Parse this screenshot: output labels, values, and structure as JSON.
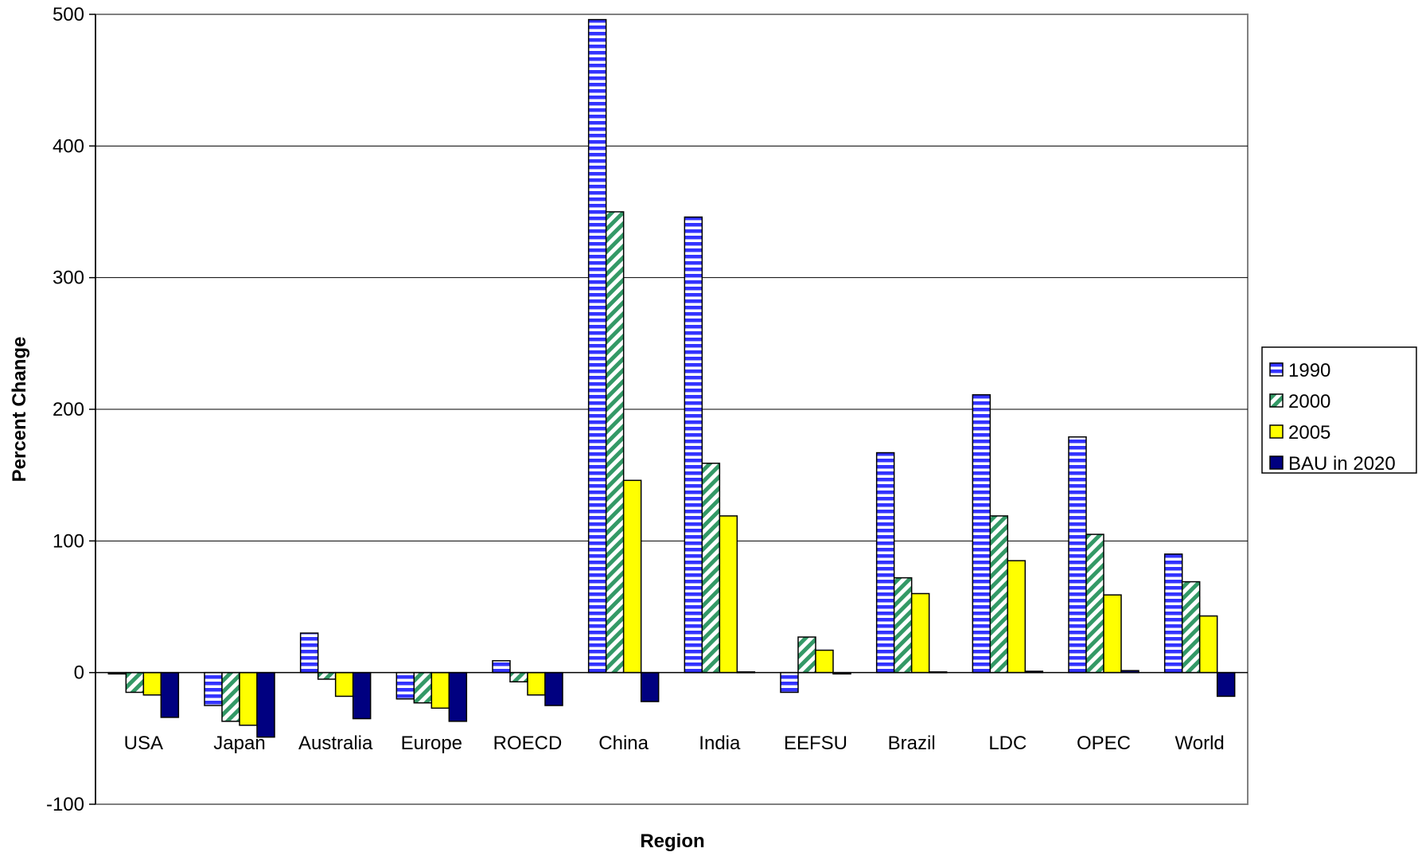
{
  "chart_data": {
    "type": "bar",
    "title": "",
    "xlabel": "Region",
    "ylabel": "Percent Change",
    "ylim": [
      -100,
      500
    ],
    "yticks": [
      -100,
      0,
      100,
      200,
      300,
      400,
      500
    ],
    "grid": true,
    "legend_position": "right",
    "categories": [
      "USA",
      "Japan",
      "Australia",
      "Europe",
      "ROECD",
      "China",
      "India",
      "EEFSU",
      "Brazil",
      "LDC",
      "OPEC",
      "World"
    ],
    "series": [
      {
        "name": "1990",
        "color": "#3333ff",
        "pattern": "horizontal-stripes",
        "values": [
          -1,
          -25,
          30,
          -20,
          9,
          496,
          346,
          -15,
          167,
          211,
          179,
          90
        ]
      },
      {
        "name": "2000",
        "color": "#339966",
        "pattern": "diagonal-stripes",
        "values": [
          -15,
          -37,
          -5,
          -23,
          -7,
          350,
          159,
          27,
          72,
          119,
          105,
          69
        ]
      },
      {
        "name": "2005",
        "color": "#ffff00",
        "pattern": "solid",
        "values": [
          -17,
          -40,
          -18,
          -27,
          -17,
          146,
          119,
          17,
          60,
          85,
          59,
          43
        ]
      },
      {
        "name": "BAU in 2020",
        "color": "#000080",
        "pattern": "solid",
        "values": [
          -34,
          -49,
          -35,
          -37,
          -25,
          -22,
          0.5,
          -1,
          0.5,
          1,
          1.5,
          -18
        ]
      }
    ]
  }
}
